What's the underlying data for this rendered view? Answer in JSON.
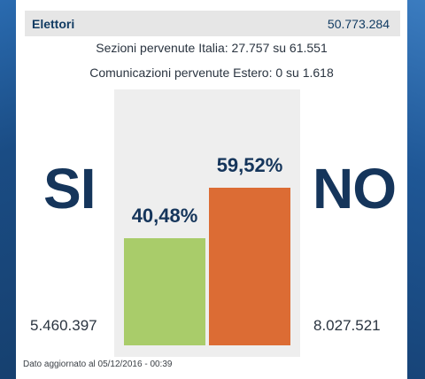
{
  "header": {
    "label": "Elettori",
    "value": "50.773.284"
  },
  "info": {
    "line1": "Sezioni pervenute Italia: 27.757 su 61.551",
    "line2": "Comunicazioni pervenute Estero: 0 su 1.618"
  },
  "results": {
    "si": {
      "label": "SI",
      "percent": "40,48%",
      "percent_value": 40.48,
      "votes": "5.460.397",
      "color": "#a9cc6a"
    },
    "no": {
      "label": "NO",
      "percent": "59,52%",
      "percent_value": 59.52,
      "votes": "8.027.521",
      "color": "#dc6c34"
    }
  },
  "footer": "Dato aggiornato al 05/12/2016 - 00:39"
}
